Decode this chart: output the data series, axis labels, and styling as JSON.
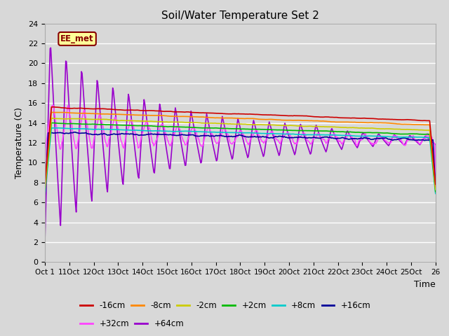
{
  "title": "Soil/Water Temperature Set 2",
  "xlabel": "Time",
  "ylabel": "Temperature (C)",
  "ylim": [
    0,
    24
  ],
  "yticks": [
    0,
    2,
    4,
    6,
    8,
    10,
    12,
    14,
    16,
    18,
    20,
    22,
    24
  ],
  "xlim": [
    0,
    25
  ],
  "xtick_positions": [
    0,
    1.5625,
    3.125,
    4.6875,
    6.25,
    7.8125,
    9.375,
    10.9375,
    12.5,
    14.0625,
    15.625,
    17.1875,
    18.75,
    20.3125,
    21.875,
    23.4375,
    25
  ],
  "xtick_labels": [
    "Oct 1",
    "11Oct",
    "12Oct",
    "13Oct",
    "14Oct",
    "15Oct",
    "16Oct",
    "17Oct",
    "18Oct",
    "19Oct",
    "20Oct",
    "21Oct",
    "22Oct",
    "23Oct",
    "24Oct",
    "25Oct",
    "26"
  ],
  "bg_color": "#d8d8d8",
  "series": {
    "-16cm": {
      "color": "#cc0000",
      "lw": 1.2
    },
    "-8cm": {
      "color": "#ff8800",
      "lw": 1.2
    },
    "-2cm": {
      "color": "#cccc00",
      "lw": 1.2
    },
    "+2cm": {
      "color": "#00bb00",
      "lw": 1.2
    },
    "+8cm": {
      "color": "#00cccc",
      "lw": 1.2
    },
    "+16cm": {
      "color": "#000099",
      "lw": 1.2
    },
    "+32cm": {
      "color": "#ff44ff",
      "lw": 1.2
    },
    "+64cm": {
      "color": "#9900cc",
      "lw": 1.2
    }
  },
  "annotation_text": "EE_met",
  "annotation_bg": "#ffff99",
  "annotation_border": "#880000"
}
